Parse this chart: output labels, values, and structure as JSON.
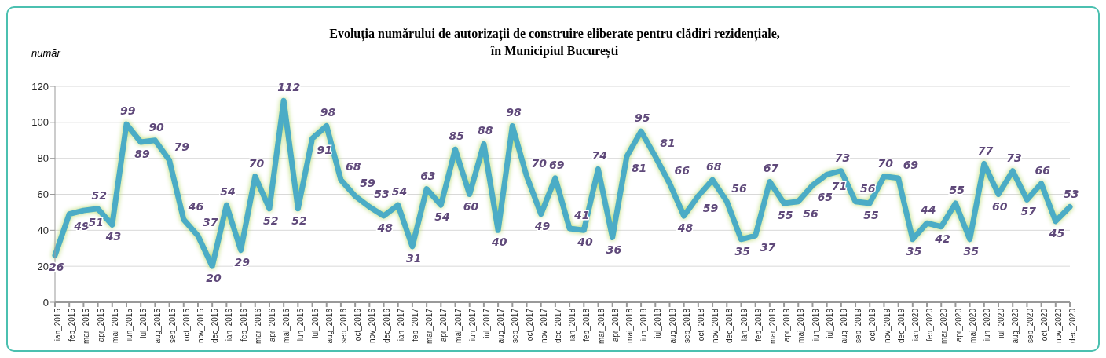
{
  "chart_data": {
    "type": "line",
    "title": "Evoluția numărului de autorizații de construire eliberate pentru clădiri rezidențiale,\nîn Municipiul București",
    "ylabel": "număr",
    "categories": [
      "ian_2015",
      "feb_2015",
      "mar_2015",
      "apr_2015",
      "mai_2015",
      "iun_2015",
      "iul_2015",
      "aug_2015",
      "sep_2015",
      "oct_2015",
      "nov_2015",
      "dec_2015",
      "ian_2016",
      "feb_2016",
      "mar_2016",
      "apr_2016",
      "mai_2016",
      "iun_2016",
      "iul_2016",
      "aug_2016",
      "sep_2016",
      "oct_2016",
      "nov_2016",
      "dec_2016",
      "ian_2017",
      "feb_2017",
      "mar_2017",
      "apr_2017",
      "mai_2017",
      "iun_2017",
      "iul_2017",
      "aug_2017",
      "sep_2017",
      "oct_2017",
      "nov_2017",
      "dec_2017",
      "ian_2018",
      "feb_2018",
      "mar_2018",
      "apr_2018",
      "mai_2018",
      "iun_2018",
      "iul_2018",
      "aug_2018",
      "sep_2018",
      "oct_2018",
      "nov_2018",
      "dec_2018",
      "ian_2019",
      "feb_2019",
      "mar_2019",
      "apr_2019",
      "mai_2019",
      "iun_2019",
      "iul_2019",
      "aug_2019",
      "sep_2019",
      "oct_2019",
      "nov_2019",
      "dec_2019",
      "ian_2020",
      "feb_2020",
      "mar_2020",
      "apr_2020",
      "mai_2020",
      "iun_2020",
      "iul_2020",
      "aug_2020",
      "sep_2020",
      "oct_2020",
      "nov_2020",
      "dec_2020"
    ],
    "series": [
      {
        "color": "#4bacc6",
        "values": [
          26,
          49,
          51,
          52,
          43,
          99,
          89,
          90,
          79,
          46,
          37,
          20,
          54,
          29,
          70,
          52,
          112,
          52,
          91,
          98,
          68,
          59,
          53,
          48,
          54,
          31,
          63,
          54,
          85,
          60,
          88,
          40,
          98,
          70,
          49,
          69,
          41,
          40,
          74,
          36,
          81,
          95,
          81,
          66,
          48,
          59,
          68,
          56,
          35,
          37,
          67,
          55,
          56,
          65,
          71,
          73,
          56,
          55,
          70,
          69,
          35,
          44,
          42,
          55,
          35,
          77,
          60,
          73,
          57,
          66,
          45,
          53
        ]
      }
    ],
    "ylim": [
      0,
      120
    ],
    "yticks": [
      0,
      20,
      40,
      60,
      80,
      100,
      120
    ],
    "grid": "y",
    "legend": false,
    "marker": "none",
    "line_style": "solid",
    "data_labels": true
  }
}
